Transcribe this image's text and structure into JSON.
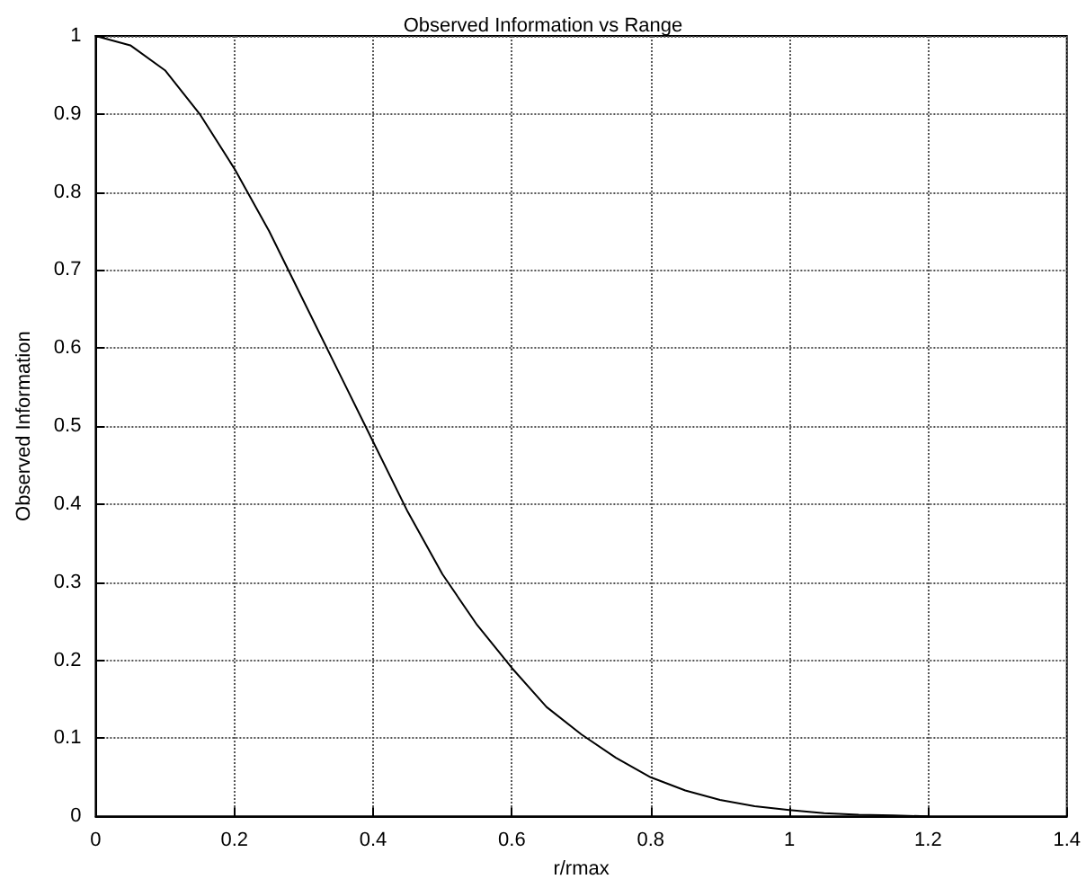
{
  "chart_data": {
    "type": "line",
    "title": "Observed Information vs Range",
    "xlabel": "r/rmax",
    "ylabel": "Observed Information",
    "x": [
      0,
      0.05,
      0.1,
      0.15,
      0.2,
      0.25,
      0.3,
      0.35,
      0.4,
      0.45,
      0.5,
      0.55,
      0.6,
      0.65,
      0.7,
      0.75,
      0.8,
      0.85,
      0.9,
      0.95,
      1.0,
      1.05,
      1.1,
      1.15,
      1.2
    ],
    "series": [
      {
        "color": "#000000",
        "values": [
          1.0,
          0.988,
          0.956,
          0.9,
          0.83,
          0.75,
          0.66,
          0.57,
          0.48,
          0.39,
          0.31,
          0.245,
          0.19,
          0.14,
          0.105,
          0.075,
          0.05,
          0.033,
          0.021,
          0.013,
          0.008,
          0.004,
          0.002,
          0.001,
          0
        ]
      }
    ],
    "xlim": [
      0,
      1.4
    ],
    "xticks": [
      0,
      0.2,
      0.4,
      0.6,
      0.8,
      1,
      1.2,
      1.4
    ],
    "ylim": [
      0,
      1
    ],
    "yticks": [
      0,
      0.1,
      0.2,
      0.3,
      0.4,
      0.5,
      0.6,
      0.7,
      0.8,
      0.9,
      1
    ],
    "grid": true,
    "marker": "none",
    "line_style": "solid"
  }
}
